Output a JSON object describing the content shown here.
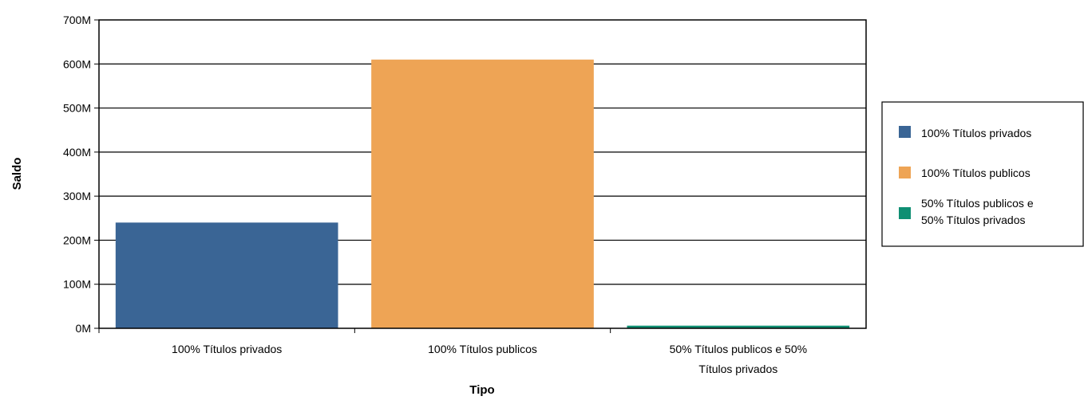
{
  "chart_data": {
    "type": "bar",
    "title": "",
    "xlabel": "Tipo",
    "ylabel": "Saldo",
    "categories": [
      [
        "100% Títulos privados"
      ],
      [
        "100% Títulos publicos"
      ],
      [
        "50% Títulos publicos e 50%",
        "Títulos privados"
      ]
    ],
    "values": [
      240000000,
      610000000,
      6000000
    ],
    "colors": [
      "#3a6595",
      "#eea455",
      "#0f8f73"
    ],
    "ylim": [
      0,
      700000000
    ],
    "yticks": [
      0,
      100000000,
      200000000,
      300000000,
      400000000,
      500000000,
      600000000,
      700000000
    ],
    "ytick_labels": [
      "0M",
      "100M",
      "200M",
      "300M",
      "400M",
      "500M",
      "600M",
      "700M"
    ],
    "grid": true,
    "legend_position": "right",
    "legend": [
      [
        "100% Títulos privados"
      ],
      [
        "100% Títulos publicos"
      ],
      [
        "50% Títulos publicos e",
        "50% Títulos privados"
      ]
    ]
  }
}
